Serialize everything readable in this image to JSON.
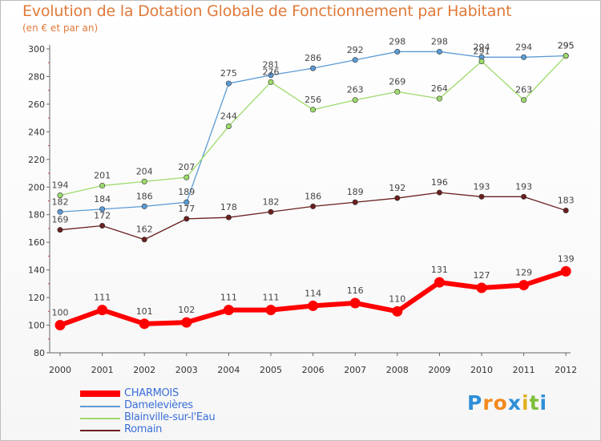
{
  "header": {
    "title": "Evolution de la Dotation Globale de Fonctionnement par Habitant",
    "subtitle": "(en € et par an)"
  },
  "logo": {
    "letters": [
      "P",
      "r",
      "o",
      "x",
      "i",
      "t",
      "i"
    ],
    "colors": [
      "#2f8fd8",
      "#f28a1e",
      "#f28a1e",
      "#2f8fd8",
      "#e0b020",
      "#7cbf3a",
      "#2f8fd8"
    ]
  },
  "chart_data": {
    "type": "line",
    "title": "Evolution de la Dotation Globale de Fonctionnement par Habitant",
    "subtitle": "(en € et par an)",
    "x": [
      "2000",
      "2001",
      "2002",
      "2003",
      "2004",
      "2005",
      "2006",
      "2007",
      "2008",
      "2009",
      "2010",
      "2011",
      "2012"
    ],
    "ylim": [
      80,
      300
    ],
    "yticks": [
      80,
      100,
      120,
      140,
      160,
      180,
      200,
      220,
      240,
      260,
      280,
      300
    ],
    "grid": false,
    "legend_position": "bottom-left",
    "series": [
      {
        "name": "CHARMOIS",
        "color": "#ff0000",
        "values": [
          100,
          111,
          101,
          102,
          111,
          111,
          114,
          116,
          110,
          131,
          127,
          129,
          139
        ]
      },
      {
        "name": "Damelevières",
        "color": "#5b9bd5",
        "values": [
          182,
          184,
          186,
          189,
          275,
          281,
          286,
          292,
          298,
          298,
          294,
          294,
          295
        ]
      },
      {
        "name": "Blainville-sur-l'Eau",
        "color": "#9ddb6c",
        "values": [
          194,
          201,
          204,
          207,
          244,
          276,
          256,
          263,
          269,
          264,
          291,
          263,
          295
        ]
      },
      {
        "name": "Romain",
        "color": "#6b1f1f",
        "values": [
          169,
          172,
          162,
          177,
          178,
          182,
          186,
          189,
          192,
          196,
          193,
          193,
          183
        ]
      }
    ]
  }
}
